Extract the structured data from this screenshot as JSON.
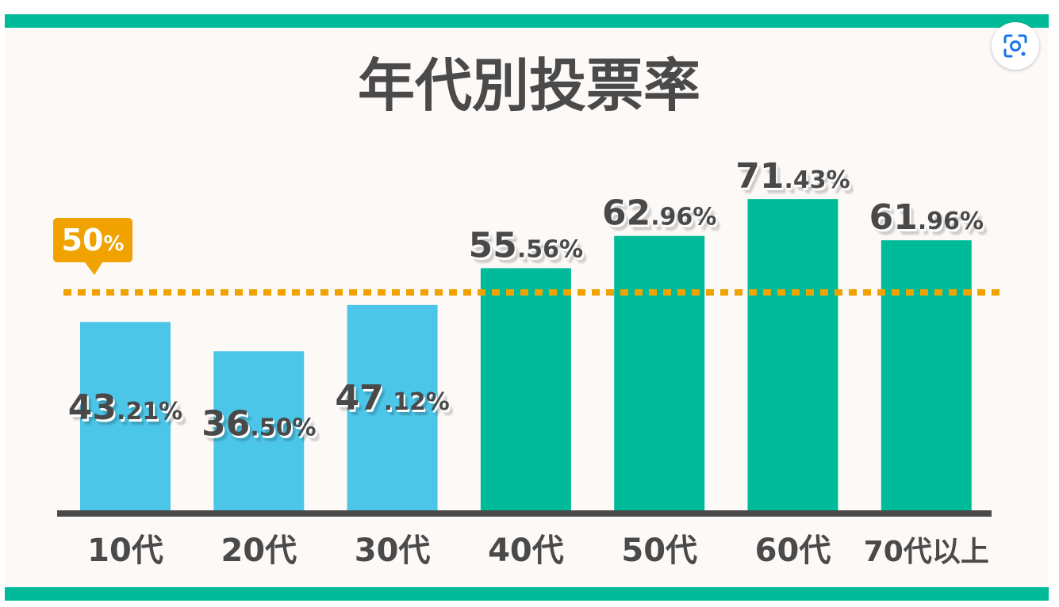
{
  "chart_data": {
    "type": "bar",
    "title": "年代別投票率",
    "categories": [
      "10代",
      "20代",
      "30代",
      "40代",
      "50代",
      "60代",
      "70代以上"
    ],
    "values": [
      43.21,
      36.5,
      47.12,
      55.56,
      62.96,
      71.43,
      61.96
    ],
    "value_labels": [
      {
        "int": "43",
        "dec": ".21%"
      },
      {
        "int": "36",
        "dec": ".50%"
      },
      {
        "int": "47",
        "dec": ".12%"
      },
      {
        "int": "55",
        "dec": ".56%"
      },
      {
        "int": "62",
        "dec": ".96%"
      },
      {
        "int": "71",
        "dec": ".43%"
      },
      {
        "int": "61",
        "dec": ".96%"
      }
    ],
    "ylim": [
      0,
      100
    ],
    "grid": false,
    "reference_line": {
      "value": 50,
      "label_int": "50",
      "label_unit": "%",
      "color": "#f0a300"
    },
    "colors": {
      "below": "#4cc6e8",
      "above": "#00bb9a",
      "axis": "#4a4a4a",
      "text": "#4a4a4a"
    }
  },
  "icons": {
    "lens": "google-lens-icon"
  }
}
